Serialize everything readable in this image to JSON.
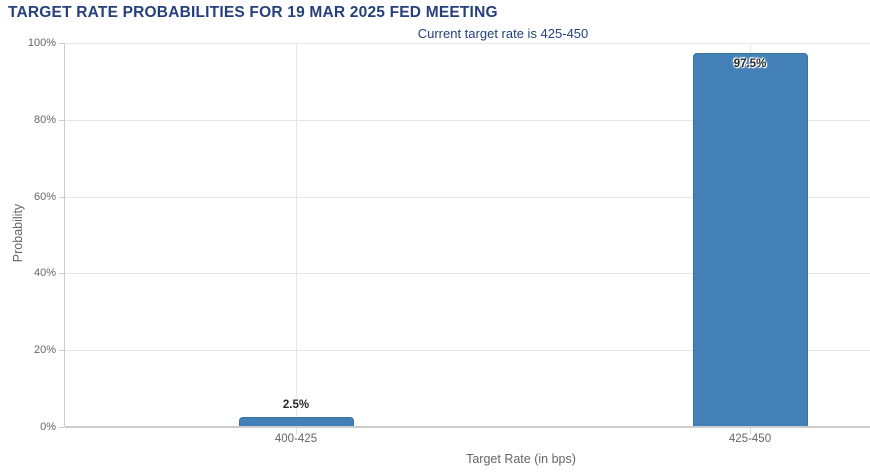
{
  "header": {
    "title": "TARGET RATE PROBABILITIES FOR 19 MAR 2025 FED MEETING",
    "subtitle": "Current target rate is 425-450"
  },
  "colors": {
    "title_text": "#26407c",
    "bar_fill": "#4380b8",
    "bar_border": "#3a719f",
    "axis_text": "#666666",
    "grid_line": "#e6e6e6",
    "axis_line": "#cccccc",
    "value_label_text": "#2a2a2a"
  },
  "chart_data": {
    "type": "bar",
    "title": "TARGET RATE PROBABILITIES FOR 19 MAR 2025 FED MEETING",
    "subtitle": "Current target rate is 425-450",
    "categories": [
      "400-425",
      "425-450"
    ],
    "values": [
      2.5,
      97.5
    ],
    "value_labels": [
      "2.5%",
      "97.5%"
    ],
    "xlabel": "Target Rate (in bps)",
    "ylabel": "Probability",
    "ylim": [
      0,
      100
    ],
    "yticks": [
      0,
      20,
      40,
      60,
      80,
      100
    ],
    "ytick_labels": [
      "0%",
      "20%",
      "40%",
      "60%",
      "80%",
      "100%"
    ],
    "grid": true,
    "legend": false
  }
}
